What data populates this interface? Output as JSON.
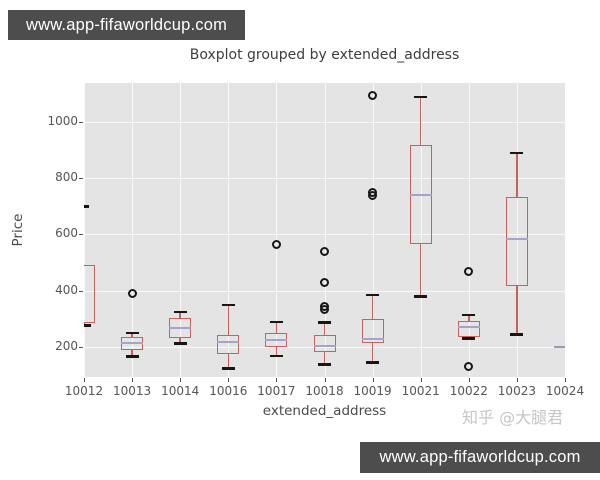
{
  "banners": {
    "top": "www.app-fifaworldcup.com",
    "bottom": "www.app-fifaworldcup.com"
  },
  "watermark": {
    "text": "知乎 @大腿君"
  },
  "colors": {
    "banner_bg": "#4d4d4d",
    "plot_bg": "#e5e4e4",
    "grid": "#fafafa",
    "box_edge": "#c8615c",
    "median": "#a7a2cd",
    "caps_fliers": "#161616",
    "single_point": "#9a9ab8",
    "tick_text": "#555555"
  },
  "chart_data": {
    "type": "boxplot",
    "title": "Boxplot grouped by extended_address",
    "xlabel": "extended_address",
    "ylabel": "Price",
    "categories": [
      "10012",
      "10013",
      "10014",
      "10016",
      "10017",
      "10018",
      "10019",
      "10021",
      "10022",
      "10023",
      "10024"
    ],
    "yticks": [
      200,
      400,
      600,
      800,
      1000
    ],
    "ylim": [
      93,
      1139
    ],
    "grid": true,
    "boxes": [
      {
        "label": "10012",
        "whislo": 277,
        "q1": 285,
        "med": null,
        "q3": 490,
        "whishi": null,
        "fliers": [],
        "dash_fliers": [
          700
        ]
      },
      {
        "label": "10013",
        "whislo": 166,
        "q1": 189,
        "med": 214,
        "q3": 237,
        "whishi": 250,
        "fliers": [
          390
        ],
        "dash_fliers": []
      },
      {
        "label": "10014",
        "whislo": 213,
        "q1": 231,
        "med": 266,
        "q3": 302,
        "whishi": 325,
        "fliers": [],
        "dash_fliers": []
      },
      {
        "label": "10016",
        "whislo": 125,
        "q1": 174,
        "med": 217,
        "q3": 243,
        "whishi": 350,
        "fliers": [],
        "dash_fliers": []
      },
      {
        "label": "10017",
        "whislo": 168,
        "q1": 201,
        "med": 225,
        "q3": 251,
        "whishi": 290,
        "fliers": [
          565
        ],
        "dash_fliers": []
      },
      {
        "label": "10018",
        "whislo": 138,
        "q1": 183,
        "med": 205,
        "q3": 243,
        "whishi": 288,
        "fliers": [
          540,
          430,
          345,
          333
        ],
        "dash_fliers": []
      },
      {
        "label": "10019",
        "whislo": 145,
        "q1": 213,
        "med": 227,
        "q3": 298,
        "whishi": 385,
        "fliers": [
          1095,
          750,
          737
        ],
        "dash_fliers": []
      },
      {
        "label": "10021",
        "whislo": 380,
        "q1": 565,
        "med": 740,
        "q3": 920,
        "whishi": 1090,
        "fliers": [],
        "dash_fliers": []
      },
      {
        "label": "10022",
        "whislo": 231,
        "q1": 237,
        "med": 272,
        "q3": 292,
        "whishi": 314,
        "fliers": [
          470,
          132
        ],
        "dash_fliers": []
      },
      {
        "label": "10023",
        "whislo": 245,
        "q1": 415,
        "med": 583,
        "q3": 735,
        "whishi": 890,
        "fliers": [],
        "dash_fliers": []
      },
      {
        "label": "10024",
        "whislo": null,
        "q1": null,
        "med": 200,
        "q3": null,
        "whishi": null,
        "fliers": [],
        "dash_fliers": [],
        "single": true
      }
    ]
  }
}
